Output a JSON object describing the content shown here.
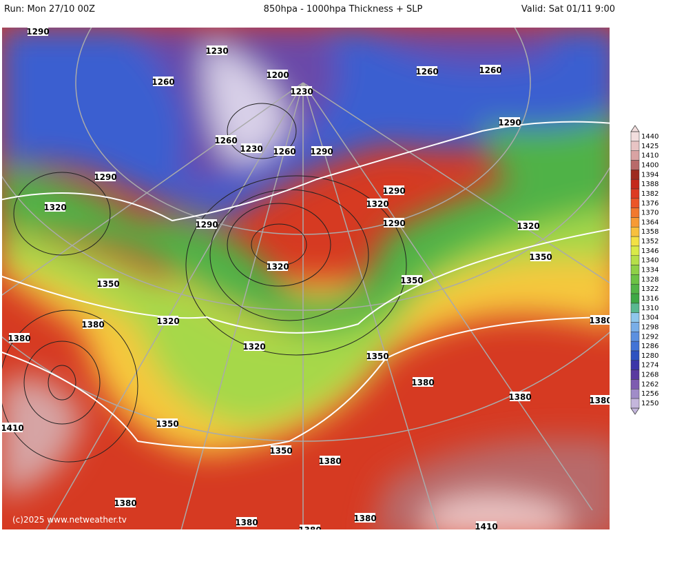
{
  "header": {
    "run": "Run: Mon 27/10 00Z",
    "title": "850hpa - 1000hpa Thickness + SLP",
    "valid": "Valid: Sat 01/11 9:00"
  },
  "copyright": "(c)2025 www.netweather.tv",
  "contour_labels": [
    "1290",
    "1230",
    "1200",
    "1230",
    "1260",
    "1260",
    "1260",
    "1290",
    "1260",
    "1230",
    "1260",
    "1290",
    "1290",
    "1320",
    "1290",
    "1320",
    "1290",
    "1290",
    "1320",
    "1320",
    "1350",
    "1350",
    "1350",
    "1380",
    "1320",
    "1380",
    "1380",
    "1320",
    "1350",
    "1380",
    "1380",
    "1380",
    "1410",
    "1350",
    "1350",
    "1380",
    "1380",
    "1380",
    "1380",
    "1380",
    "1410"
  ],
  "colorbar": {
    "labels": [
      1440,
      1425,
      1410,
      1400,
      1394,
      1388,
      1382,
      1376,
      1370,
      1364,
      1358,
      1352,
      1346,
      1340,
      1334,
      1328,
      1322,
      1316,
      1310,
      1304,
      1298,
      1292,
      1286,
      1280,
      1274,
      1268,
      1262,
      1256,
      1250
    ],
    "colors": [
      "#f2dede",
      "#e8c4c4",
      "#d9a3a3",
      "#b86a6a",
      "#9e2a1e",
      "#c4281c",
      "#dd3a22",
      "#ec5527",
      "#f2782d",
      "#f79a34",
      "#f8c03d",
      "#f3e144",
      "#d9ea48",
      "#b6df49",
      "#8fd046",
      "#6cc244",
      "#52b446",
      "#3ea845",
      "#59b890",
      "#8fc7ec",
      "#79aee8",
      "#5c90e0",
      "#4273d6",
      "#2d52c0",
      "#3b36a8",
      "#5a3aa0",
      "#7d5cb0",
      "#a08cc8",
      "#c4b6dc"
    ]
  }
}
